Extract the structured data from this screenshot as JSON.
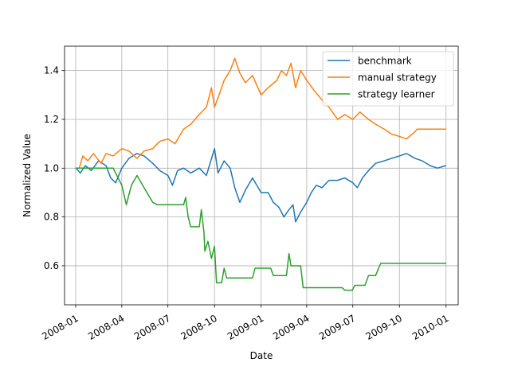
{
  "chart_data": {
    "type": "line",
    "title": "",
    "xlabel": "Date",
    "ylabel": "Normalized Value",
    "x_range": [
      "2007-12-10",
      "2010-01-25"
    ],
    "ylim": [
      0.44,
      1.5
    ],
    "x_ticks": [
      "2008-01",
      "2008-04",
      "2008-07",
      "2008-10",
      "2009-01",
      "2009-04",
      "2009-07",
      "2009-10",
      "2010-01"
    ],
    "y_ticks": [
      0.6,
      0.8,
      1.0,
      1.2,
      1.4
    ],
    "y_tick_labels": [
      "0.6",
      "0.8",
      "1.0",
      "1.2",
      "1.4"
    ],
    "grid": true,
    "legend_position": "top-right",
    "series": [
      {
        "name": "benchmark",
        "color": "#1f77b4",
        "points": [
          [
            "2008-01-02",
            1.0
          ],
          [
            "2008-01-10",
            0.98
          ],
          [
            "2008-01-20",
            1.01
          ],
          [
            "2008-02-01",
            0.99
          ],
          [
            "2008-02-15",
            1.03
          ],
          [
            "2008-03-01",
            1.01
          ],
          [
            "2008-03-10",
            0.96
          ],
          [
            "2008-03-20",
            0.94
          ],
          [
            "2008-04-01",
            1.0
          ],
          [
            "2008-04-15",
            1.04
          ],
          [
            "2008-05-01",
            1.06
          ],
          [
            "2008-05-15",
            1.05
          ],
          [
            "2008-06-01",
            1.02
          ],
          [
            "2008-06-15",
            0.99
          ],
          [
            "2008-07-01",
            0.97
          ],
          [
            "2008-07-10",
            0.93
          ],
          [
            "2008-07-20",
            0.99
          ],
          [
            "2008-08-01",
            1.0
          ],
          [
            "2008-08-15",
            0.98
          ],
          [
            "2008-09-01",
            1.0
          ],
          [
            "2008-09-15",
            0.97
          ],
          [
            "2008-10-01",
            1.08
          ],
          [
            "2008-10-08",
            0.98
          ],
          [
            "2008-10-20",
            1.03
          ],
          [
            "2008-11-01",
            1.0
          ],
          [
            "2008-11-10",
            0.92
          ],
          [
            "2008-11-20",
            0.86
          ],
          [
            "2008-12-01",
            0.91
          ],
          [
            "2008-12-15",
            0.96
          ],
          [
            "2009-01-01",
            0.9
          ],
          [
            "2009-01-15",
            0.9
          ],
          [
            "2009-01-25",
            0.86
          ],
          [
            "2009-02-05",
            0.84
          ],
          [
            "2009-02-15",
            0.8
          ],
          [
            "2009-02-25",
            0.83
          ],
          [
            "2009-03-05",
            0.85
          ],
          [
            "2009-03-10",
            0.78
          ],
          [
            "2009-03-20",
            0.82
          ],
          [
            "2009-04-01",
            0.86
          ],
          [
            "2009-04-10",
            0.9
          ],
          [
            "2009-04-20",
            0.93
          ],
          [
            "2009-05-01",
            0.92
          ],
          [
            "2009-05-15",
            0.95
          ],
          [
            "2009-06-01",
            0.95
          ],
          [
            "2009-06-15",
            0.96
          ],
          [
            "2009-07-01",
            0.94
          ],
          [
            "2009-07-10",
            0.92
          ],
          [
            "2009-07-20",
            0.96
          ],
          [
            "2009-08-01",
            0.99
          ],
          [
            "2009-08-15",
            1.02
          ],
          [
            "2009-09-01",
            1.03
          ],
          [
            "2009-09-15",
            1.04
          ],
          [
            "2009-10-01",
            1.05
          ],
          [
            "2009-10-15",
            1.06
          ],
          [
            "2009-11-01",
            1.04
          ],
          [
            "2009-11-15",
            1.03
          ],
          [
            "2009-12-01",
            1.01
          ],
          [
            "2009-12-15",
            1.0
          ],
          [
            "2009-12-31",
            1.01
          ]
        ]
      },
      {
        "name": "manual strategy",
        "color": "#ff7f0e",
        "points": [
          [
            "2008-01-02",
            1.0
          ],
          [
            "2008-01-08",
            1.0
          ],
          [
            "2008-01-15",
            1.05
          ],
          [
            "2008-01-25",
            1.03
          ],
          [
            "2008-02-05",
            1.06
          ],
          [
            "2008-02-20",
            1.02
          ],
          [
            "2008-03-01",
            1.06
          ],
          [
            "2008-03-15",
            1.05
          ],
          [
            "2008-04-01",
            1.08
          ],
          [
            "2008-04-15",
            1.07
          ],
          [
            "2008-05-01",
            1.04
          ],
          [
            "2008-05-15",
            1.07
          ],
          [
            "2008-06-01",
            1.08
          ],
          [
            "2008-06-15",
            1.11
          ],
          [
            "2008-07-01",
            1.12
          ],
          [
            "2008-07-15",
            1.1
          ],
          [
            "2008-08-01",
            1.16
          ],
          [
            "2008-08-15",
            1.18
          ],
          [
            "2008-09-01",
            1.22
          ],
          [
            "2008-09-15",
            1.25
          ],
          [
            "2008-09-25",
            1.33
          ],
          [
            "2008-10-01",
            1.25
          ],
          [
            "2008-10-10",
            1.3
          ],
          [
            "2008-10-20",
            1.36
          ],
          [
            "2008-11-01",
            1.4
          ],
          [
            "2008-11-10",
            1.45
          ],
          [
            "2008-11-20",
            1.39
          ],
          [
            "2008-12-01",
            1.35
          ],
          [
            "2008-12-15",
            1.38
          ],
          [
            "2009-01-01",
            1.3
          ],
          [
            "2009-01-15",
            1.33
          ],
          [
            "2009-02-01",
            1.36
          ],
          [
            "2009-02-10",
            1.4
          ],
          [
            "2009-02-20",
            1.38
          ],
          [
            "2009-03-01",
            1.43
          ],
          [
            "2009-03-10",
            1.33
          ],
          [
            "2009-03-20",
            1.4
          ],
          [
            "2009-04-01",
            1.36
          ],
          [
            "2009-04-15",
            1.32
          ],
          [
            "2009-05-01",
            1.28
          ],
          [
            "2009-05-15",
            1.25
          ],
          [
            "2009-06-01",
            1.2
          ],
          [
            "2009-06-15",
            1.22
          ],
          [
            "2009-07-01",
            1.2
          ],
          [
            "2009-07-15",
            1.23
          ],
          [
            "2009-08-01",
            1.2
          ],
          [
            "2009-08-15",
            1.18
          ],
          [
            "2009-09-01",
            1.16
          ],
          [
            "2009-09-15",
            1.14
          ],
          [
            "2009-10-01",
            1.13
          ],
          [
            "2009-10-15",
            1.12
          ],
          [
            "2009-11-01",
            1.15
          ],
          [
            "2009-11-05",
            1.16
          ],
          [
            "2009-12-31",
            1.16
          ]
        ]
      },
      {
        "name": "strategy learner",
        "color": "#2ca02c",
        "points": [
          [
            "2008-01-02",
            1.0
          ],
          [
            "2008-03-15",
            1.0
          ],
          [
            "2008-04-01",
            0.93
          ],
          [
            "2008-04-10",
            0.85
          ],
          [
            "2008-04-20",
            0.93
          ],
          [
            "2008-05-01",
            0.97
          ],
          [
            "2008-05-15",
            0.92
          ],
          [
            "2008-06-01",
            0.86
          ],
          [
            "2008-06-10",
            0.85
          ],
          [
            "2008-08-01",
            0.85
          ],
          [
            "2008-08-05",
            0.88
          ],
          [
            "2008-08-10",
            0.8
          ],
          [
            "2008-08-15",
            0.76
          ],
          [
            "2008-09-01",
            0.76
          ],
          [
            "2008-09-05",
            0.83
          ],
          [
            "2008-09-10",
            0.74
          ],
          [
            "2008-09-12",
            0.66
          ],
          [
            "2008-09-18",
            0.7
          ],
          [
            "2008-09-25",
            0.63
          ],
          [
            "2008-10-01",
            0.68
          ],
          [
            "2008-10-05",
            0.53
          ],
          [
            "2008-10-15",
            0.53
          ],
          [
            "2008-10-20",
            0.59
          ],
          [
            "2008-10-25",
            0.55
          ],
          [
            "2008-12-15",
            0.55
          ],
          [
            "2008-12-20",
            0.59
          ],
          [
            "2009-01-20",
            0.59
          ],
          [
            "2009-01-25",
            0.56
          ],
          [
            "2009-02-20",
            0.56
          ],
          [
            "2009-02-25",
            0.65
          ],
          [
            "2009-03-01",
            0.6
          ],
          [
            "2009-03-20",
            0.6
          ],
          [
            "2009-03-25",
            0.51
          ],
          [
            "2009-06-10",
            0.51
          ],
          [
            "2009-06-15",
            0.5
          ],
          [
            "2009-06-30",
            0.5
          ],
          [
            "2009-07-05",
            0.52
          ],
          [
            "2009-07-25",
            0.52
          ],
          [
            "2009-08-01",
            0.56
          ],
          [
            "2009-08-15",
            0.56
          ],
          [
            "2009-08-25",
            0.61
          ],
          [
            "2009-12-31",
            0.61
          ]
        ]
      }
    ]
  }
}
